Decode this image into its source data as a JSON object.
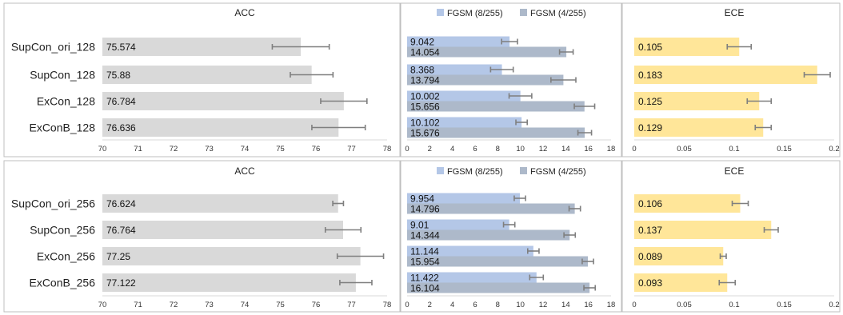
{
  "colors": {
    "acc_bar": "#d9d9d9",
    "fgsm8": "#b4c7e7",
    "fgsm4": "#adb9ca",
    "ece_bar": "#ffe699",
    "error_bar": "#7f7f7f",
    "panel_border": "#bfbfbf",
    "axis": "#d9d9d9"
  },
  "chart_data": [
    {
      "type": "bar",
      "orientation": "horizontal",
      "title": "ACC",
      "categories": [
        "SupCon_ori_128",
        "SupCon_128",
        "ExCon_128",
        "ExConB_128"
      ],
      "values": [
        75.574,
        75.88,
        76.784,
        76.636
      ],
      "value_labels": [
        "75.574",
        "75.88",
        "76.784",
        "76.636"
      ],
      "errors": [
        0.8,
        0.6,
        0.65,
        0.75
      ],
      "xlim": [
        70,
        78
      ],
      "ticks": [
        "70",
        "71",
        "72",
        "73",
        "74",
        "75",
        "76",
        "77",
        "78"
      ],
      "tick_values": [
        70,
        71,
        72,
        73,
        74,
        75,
        76,
        77,
        78
      ]
    },
    {
      "type": "bar",
      "orientation": "horizontal",
      "title": "",
      "legend": [
        "FGSM (8/255)",
        "FGSM (4/255)"
      ],
      "legend_position": "top",
      "series": [
        {
          "name": "FGSM (8/255)",
          "values": [
            9.042,
            8.368,
            10.002,
            10.102
          ],
          "value_labels": [
            "9.042",
            "8.368",
            "10.002",
            "10.102"
          ],
          "errors": [
            0.7,
            1.0,
            1.0,
            0.5
          ]
        },
        {
          "name": "FGSM (4/255)",
          "values": [
            14.054,
            13.794,
            15.656,
            15.676
          ],
          "value_labels": [
            "14.054",
            "13.794",
            "15.656",
            "15.676"
          ],
          "errors": [
            0.6,
            1.1,
            0.9,
            0.6
          ]
        }
      ],
      "xlim": [
        0,
        18
      ],
      "ticks": [
        "0",
        "2",
        "4",
        "6",
        "8",
        "10",
        "12",
        "14",
        "16",
        "18"
      ],
      "tick_values": [
        0,
        2,
        4,
        6,
        8,
        10,
        12,
        14,
        16,
        18
      ]
    },
    {
      "type": "bar",
      "orientation": "horizontal",
      "title": "ECE",
      "values": [
        0.105,
        0.183,
        0.125,
        0.129
      ],
      "value_labels": [
        "0.105",
        "0.183",
        "0.125",
        "0.129"
      ],
      "errors": [
        0.012,
        0.013,
        0.012,
        0.008
      ],
      "xlim": [
        0,
        0.2
      ],
      "ticks": [
        "0",
        "0.05",
        "0.1",
        "0.15",
        "0.2"
      ],
      "tick_values": [
        0,
        0.05,
        0.1,
        0.15,
        0.2
      ]
    },
    {
      "type": "bar",
      "orientation": "horizontal",
      "title": "ACC",
      "categories": [
        "SupCon_ori_256",
        "SupCon_256",
        "ExCon_256",
        "ExConB_256"
      ],
      "values": [
        76.624,
        76.764,
        77.25,
        77.122
      ],
      "value_labels": [
        "76.624",
        "76.764",
        "77.25",
        "77.122"
      ],
      "errors": [
        0.15,
        0.5,
        0.65,
        0.45
      ],
      "xlim": [
        70,
        78
      ],
      "ticks": [
        "70",
        "71",
        "72",
        "73",
        "74",
        "75",
        "76",
        "77",
        "78"
      ],
      "tick_values": [
        70,
        71,
        72,
        73,
        74,
        75,
        76,
        77,
        78
      ]
    },
    {
      "type": "bar",
      "orientation": "horizontal",
      "title": "",
      "legend": [
        "FGSM (8/255)",
        "FGSM (4/255)"
      ],
      "legend_position": "top",
      "series": [
        {
          "name": "FGSM (8/255)",
          "values": [
            9.954,
            9.01,
            11.144,
            11.422
          ],
          "value_labels": [
            "9.954",
            "9.01",
            "11.144",
            "11.422"
          ],
          "errors": [
            0.5,
            0.5,
            0.5,
            0.6
          ]
        },
        {
          "name": "FGSM (4/255)",
          "values": [
            14.796,
            14.344,
            15.954,
            16.104
          ],
          "value_labels": [
            "14.796",
            "14.344",
            "15.954",
            "16.104"
          ],
          "errors": [
            0.5,
            0.5,
            0.5,
            0.5
          ]
        }
      ],
      "xlim": [
        0,
        18
      ],
      "ticks": [
        "0",
        "2",
        "4",
        "6",
        "8",
        "10",
        "12",
        "14",
        "16",
        "18"
      ],
      "tick_values": [
        0,
        2,
        4,
        6,
        8,
        10,
        12,
        14,
        16,
        18
      ]
    },
    {
      "type": "bar",
      "orientation": "horizontal",
      "title": "ECE",
      "values": [
        0.106,
        0.137,
        0.089,
        0.093
      ],
      "value_labels": [
        "0.106",
        "0.137",
        "0.089",
        "0.093"
      ],
      "errors": [
        0.008,
        0.007,
        0.003,
        0.008
      ],
      "xlim": [
        0,
        0.2
      ],
      "ticks": [
        "0",
        "0.05",
        "0.1",
        "0.15",
        "0.2"
      ],
      "tick_values": [
        0,
        0.05,
        0.1,
        0.15,
        0.2
      ]
    }
  ]
}
